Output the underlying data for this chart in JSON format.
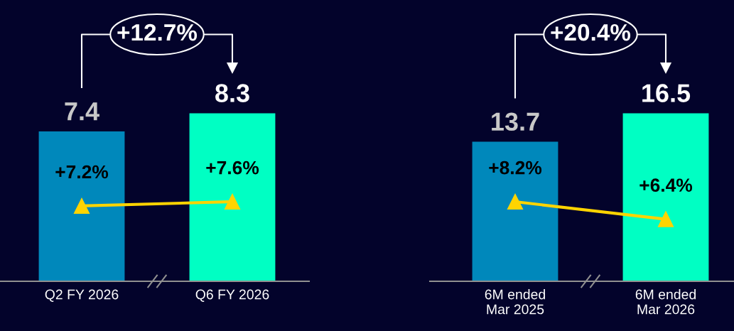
{
  "chart_data": [
    {
      "type": "bar",
      "categories": [
        "Q2 FY 2026",
        "Q6 FY 2026"
      ],
      "tick_labels": "x",
      "data_labels": true,
      "marker": "triangle",
      "annotations": [
        "+12.7%"
      ],
      "series": [
        {
          "colors": [
            "#0088bb",
            "#00ffc3"
          ],
          "values": [
            7.4,
            8.3
          ]
        },
        {
          "type": "line",
          "axis": "y2",
          "color": "#ffd400",
          "values": [
            7.2,
            7.6
          ],
          "value_labels": [
            "+7.2%",
            "+7.6%"
          ]
        }
      ]
    },
    {
      "type": "bar",
      "categories": [
        "6M ended\nMar 2025",
        "6M ended\nMar 2026"
      ],
      "tick_labels": "x",
      "data_labels": true,
      "marker": "triangle",
      "annotations": [
        "+20.4%"
      ],
      "series": [
        {
          "colors": [
            "#0088bb",
            "#00ffc3"
          ],
          "values": [
            13.7,
            16.5
          ]
        },
        {
          "type": "line",
          "axis": "y2",
          "color": "#ffd400",
          "values": [
            8.2,
            6.4
          ],
          "value_labels": [
            "+8.2%",
            "+6.4%"
          ]
        }
      ]
    }
  ]
}
